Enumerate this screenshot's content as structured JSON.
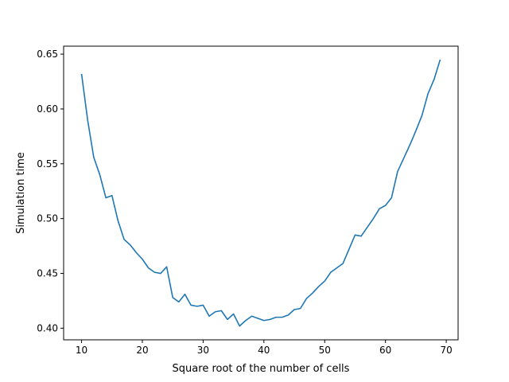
{
  "chart_data": {
    "type": "line",
    "title": "",
    "xlabel": "Square root of the number of cells",
    "ylabel": "Simulation time",
    "xlim": [
      7.05,
      71.95
    ],
    "ylim": [
      0.3894,
      0.6573
    ],
    "xticks": [
      10,
      20,
      30,
      40,
      50,
      60,
      70
    ],
    "yticks": [
      0.4,
      0.45,
      0.5,
      0.55,
      0.6,
      0.65
    ],
    "xtick_labels": [
      "10",
      "20",
      "30",
      "40",
      "50",
      "60",
      "70"
    ],
    "ytick_labels": [
      "0.40",
      "0.45",
      "0.50",
      "0.55",
      "0.60",
      "0.65"
    ],
    "grid": false,
    "line_color": "#1f77b4",
    "series": [
      {
        "x": [
          10,
          11,
          12,
          13,
          14,
          15,
          16,
          17,
          18,
          19,
          20,
          21,
          22,
          23,
          24,
          25,
          26,
          27,
          28,
          29,
          30,
          31,
          32,
          33,
          34,
          35,
          36,
          37,
          38,
          39,
          40,
          41,
          42,
          43,
          44,
          45,
          46,
          47,
          48,
          49,
          50,
          51,
          52,
          53,
          54,
          55,
          56,
          57,
          58,
          59,
          60,
          61,
          62,
          63,
          64,
          65,
          66,
          67,
          68,
          69
        ],
        "y": [
          0.632,
          0.59,
          0.556,
          0.54,
          0.519,
          0.521,
          0.498,
          0.481,
          0.476,
          0.469,
          0.463,
          0.455,
          0.451,
          0.45,
          0.456,
          0.428,
          0.424,
          0.431,
          0.421,
          0.42,
          0.421,
          0.411,
          0.415,
          0.416,
          0.408,
          0.413,
          0.402,
          0.407,
          0.411,
          0.409,
          0.407,
          0.408,
          0.41,
          0.41,
          0.412,
          0.417,
          0.418,
          0.427,
          0.432,
          0.438,
          0.443,
          0.451,
          0.455,
          0.459,
          0.472,
          0.485,
          0.484,
          0.492,
          0.5,
          0.509,
          0.512,
          0.519,
          0.543,
          0.555,
          0.567,
          0.58,
          0.594,
          0.614,
          0.627,
          0.645
        ]
      }
    ]
  }
}
